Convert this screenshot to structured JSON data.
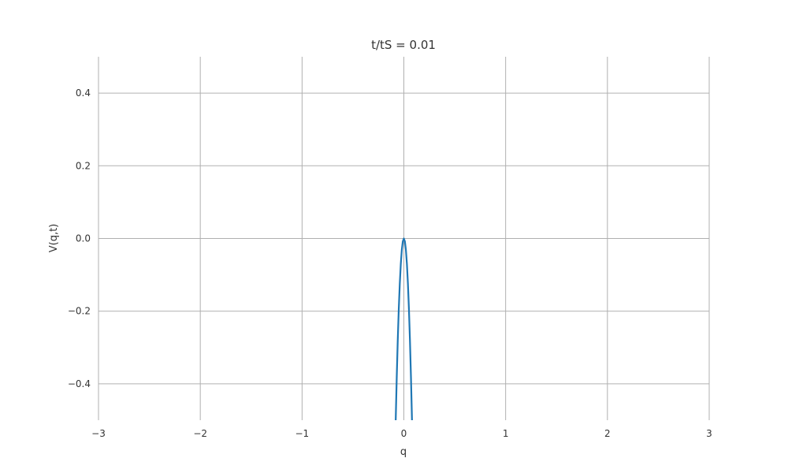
{
  "chart_data": {
    "type": "line",
    "title": "t/tS = 0.01",
    "xlabel": "q",
    "ylabel": "V(q,t)",
    "xlim": [
      -3,
      3
    ],
    "ylim": [
      -0.5,
      0.5
    ],
    "grid": true,
    "x_ticks": [
      -3,
      -2,
      -1,
      0,
      1,
      2,
      3
    ],
    "x_tick_labels": [
      "−3",
      "−2",
      "−1",
      "0",
      "1",
      "2",
      "3"
    ],
    "y_ticks": [
      -0.4,
      -0.2,
      0.0,
      0.2,
      0.4
    ],
    "y_tick_labels": [
      "−0.4",
      "−0.2",
      "0.0",
      "0.2",
      "0.4"
    ],
    "series": [
      {
        "color": "#1f77b4",
        "x": [
          -0.08,
          -0.07,
          -0.06,
          -0.05,
          -0.04,
          -0.03,
          -0.02,
          -0.01,
          0.0,
          0.01,
          0.02,
          0.03,
          0.04,
          0.05,
          0.06,
          0.07,
          0.08
        ],
        "y": [
          -0.5,
          -0.383,
          -0.281,
          -0.195,
          -0.125,
          -0.07,
          -0.031,
          -0.008,
          0.0,
          -0.008,
          -0.031,
          -0.07,
          -0.125,
          -0.195,
          -0.281,
          -0.383,
          -0.5
        ]
      }
    ]
  }
}
